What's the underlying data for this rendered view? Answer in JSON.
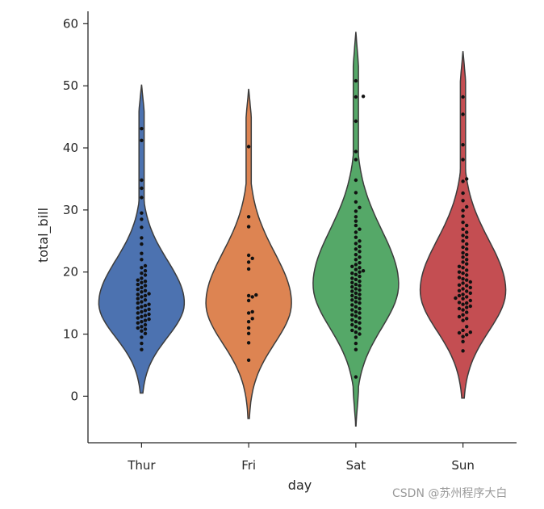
{
  "chart_data": {
    "type": "violin",
    "title": "",
    "xlabel": "day",
    "ylabel": "total_bill",
    "categories": [
      "Thur",
      "Fri",
      "Sat",
      "Sun"
    ],
    "yticks": [
      0,
      10,
      20,
      30,
      40,
      50,
      60
    ],
    "ytick_labels": [
      "0",
      "10",
      "20",
      "30",
      "40",
      "50",
      "60"
    ],
    "ylim": [
      -7.5,
      62
    ],
    "grid": false,
    "colors": [
      "#4c72b0",
      "#dd8452",
      "#55a868",
      "#c44e52"
    ],
    "violins": [
      {
        "category": "Thur",
        "min": 0.5,
        "max": 50.2,
        "mode": 15,
        "spread": 5.5
      },
      {
        "category": "Fri",
        "min": -3.6,
        "max": 49.5,
        "mode": 15,
        "spread": 6.5
      },
      {
        "category": "Sat",
        "min": -4.8,
        "max": 58.7,
        "mode": 18,
        "spread": 7
      },
      {
        "category": "Sun",
        "min": -0.3,
        "max": 55.6,
        "mode": 17,
        "spread": 6.5
      }
    ],
    "series": [
      {
        "category": "Thur",
        "values": [
          7.5,
          8.5,
          9.5,
          10.1,
          10.5,
          10.8,
          11,
          11.2,
          11.5,
          11.8,
          12,
          12.2,
          12.4,
          12.6,
          12.8,
          13,
          13.2,
          13.4,
          13.6,
          13.8,
          14,
          14.2,
          14.4,
          14.6,
          14.8,
          15,
          15.2,
          15.5,
          15.7,
          16,
          16.2,
          16.4,
          16.5,
          16.8,
          17,
          17.2,
          17.5,
          17.8,
          18,
          18.3,
          18.5,
          18.7,
          19,
          19.5,
          19.8,
          20.2,
          20.7,
          21,
          22,
          23,
          24.5,
          25.5,
          27.2,
          28.5,
          29.5,
          32,
          33.5,
          34.8,
          41.2,
          43.1
        ]
      },
      {
        "category": "Fri",
        "values": [
          5.8,
          8.6,
          10.1,
          11,
          12,
          12.5,
          13.4,
          13.6,
          15.4,
          16,
          16.2,
          16.3,
          20.5,
          21.6,
          22.2,
          22.7,
          27.3,
          28.9,
          40.2
        ]
      },
      {
        "category": "Sat",
        "values": [
          3.1,
          7.5,
          8.5,
          9.5,
          10,
          10.3,
          10.6,
          10.9,
          11.2,
          11.5,
          11.8,
          12,
          12.3,
          12.6,
          12.9,
          13.1,
          13.4,
          13.6,
          13.9,
          14.1,
          14.4,
          14.7,
          15,
          15.2,
          15.5,
          15.7,
          15.9,
          16.2,
          16.4,
          16.6,
          16.9,
          17.1,
          17.3,
          17.6,
          17.8,
          18,
          18.3,
          18.5,
          18.8,
          19,
          19.3,
          19.6,
          19.8,
          20,
          20.2,
          20.4,
          20.7,
          20.9,
          21.2,
          21.5,
          22,
          22.4,
          22.8,
          23.3,
          23.7,
          24.1,
          24.6,
          25,
          25.6,
          26.4,
          26.9,
          27.5,
          28.2,
          28.9,
          29.8,
          30.4,
          31.3,
          32.8,
          34.8,
          38.1,
          39.4,
          44.3,
          48.2,
          48.3,
          50.8
        ]
      },
      {
        "category": "Sun",
        "values": [
          7.3,
          8.8,
          9.6,
          9.9,
          10.2,
          10.3,
          10.6,
          11.2,
          12.2,
          12.5,
          12.8,
          13.1,
          13.5,
          13.9,
          14.1,
          14.3,
          14.5,
          14.8,
          15,
          15.1,
          15.4,
          15.7,
          15.8,
          16,
          16.2,
          16.4,
          16.6,
          16.9,
          17,
          17.3,
          17.5,
          17.8,
          17.9,
          18.2,
          18.4,
          18.7,
          18.9,
          19.1,
          19.5,
          19.8,
          20,
          20.3,
          20.7,
          20.9,
          21.3,
          21.6,
          22,
          22.4,
          22.8,
          23.1,
          23.7,
          24,
          24.5,
          25,
          25.6,
          25.9,
          26.4,
          26.9,
          27.5,
          28,
          29,
          29.9,
          30.5,
          31.5,
          32.7,
          34.6,
          35,
          38.1,
          40.5,
          45.4,
          48.2
        ]
      }
    ]
  },
  "watermark": {
    "text": "CSDN @苏州程序大白"
  }
}
